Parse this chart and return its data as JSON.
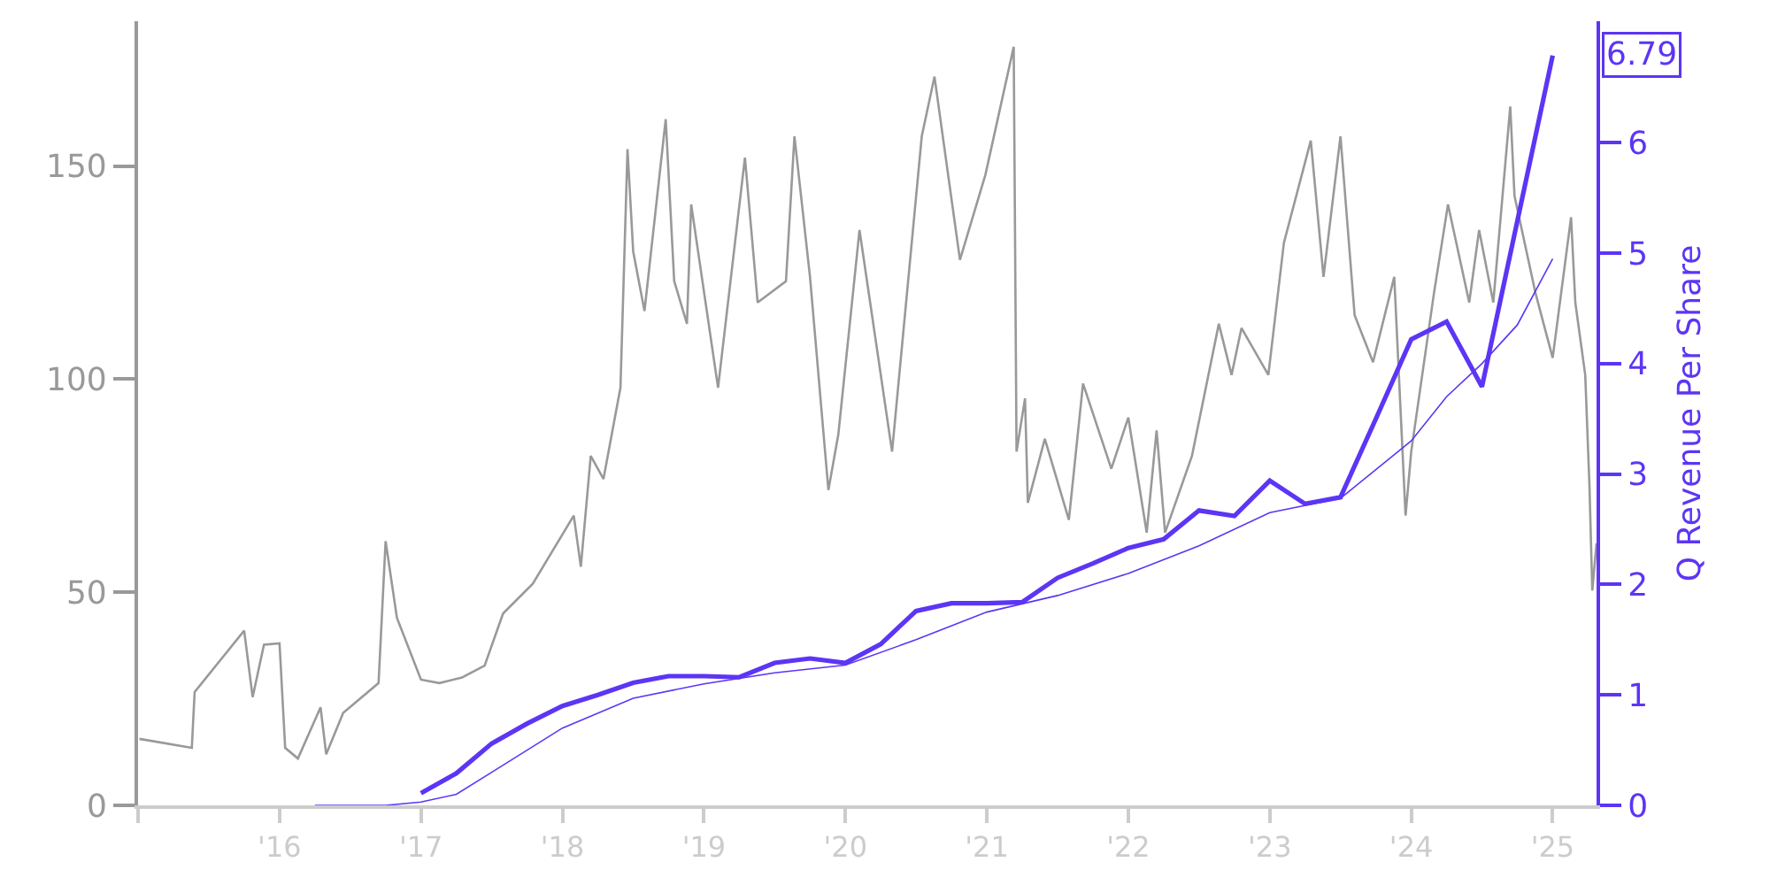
{
  "chart_data": {
    "type": "line",
    "y2label": "Q Revenue Per Share",
    "xlim": [
      2015.0,
      2025.31
    ],
    "xticks": [
      {
        "value": 2015,
        "label": null
      },
      {
        "value": 2016,
        "label": "'16"
      },
      {
        "value": 2017,
        "label": "'17"
      },
      {
        "value": 2018,
        "label": "'18"
      },
      {
        "value": 2019,
        "label": "'19"
      },
      {
        "value": 2020,
        "label": "'20"
      },
      {
        "value": 2021,
        "label": "'21"
      },
      {
        "value": 2022,
        "label": "'22"
      },
      {
        "value": 2023,
        "label": "'23"
      },
      {
        "value": 2024,
        "label": "'24"
      },
      {
        "value": 2025,
        "label": "'25"
      }
    ],
    "ylim": [
      0,
      184
    ],
    "yticks": [
      0,
      50,
      100,
      150
    ],
    "y2lim": [
      0,
      7.1
    ],
    "y2ticks": [
      0,
      1,
      2,
      3,
      4,
      5,
      6
    ],
    "marker": "none",
    "series": [
      {
        "color": "#999999",
        "x": [
          2015.01,
          2015.38,
          2015.4,
          2015.75,
          2015.81,
          2015.89,
          2016.0,
          2016.04,
          2016.13,
          2016.29,
          2016.33,
          2016.45,
          2016.7,
          2016.75,
          2016.83,
          2017.0,
          2017.13,
          2017.29,
          2017.45,
          2017.58,
          2017.79,
          2018.08,
          2018.13,
          2018.2,
          2018.29,
          2018.41,
          2018.46,
          2018.5,
          2018.58,
          2018.73,
          2018.79,
          2018.88,
          2018.91,
          2019.1,
          2019.29,
          2019.38,
          2019.58,
          2019.64,
          2019.75,
          2019.88,
          2019.95,
          2020.1,
          2020.33,
          2020.54,
          2020.63,
          2020.81,
          2020.99,
          2021.19,
          2021.21,
          2021.27,
          2021.29,
          2021.41,
          2021.58,
          2021.68,
          2021.88,
          2022.0,
          2022.13,
          2022.2,
          2022.26,
          2022.45,
          2022.64,
          2022.73,
          2022.8,
          2022.99,
          2023.1,
          2023.29,
          2023.38,
          2023.5,
          2023.6,
          2023.73,
          2023.88,
          2023.96,
          2024.0,
          2024.16,
          2024.26,
          2024.41,
          2024.48,
          2024.58,
          2024.7,
          2024.73,
          2024.88,
          2025.0,
          2025.13,
          2025.16,
          2025.23,
          2025.26,
          2025.28,
          2025.31
        ],
        "values": [
          15.6,
          13.5,
          26.6,
          41,
          25.4,
          37.7,
          38,
          13.5,
          11,
          23,
          12,
          21.7,
          28.7,
          62,
          44,
          29.5,
          28.7,
          30,
          32.8,
          45,
          52,
          68,
          56,
          82,
          76.6,
          98,
          154,
          130,
          116,
          161,
          123,
          113,
          141,
          98,
          152,
          118,
          123,
          157,
          124,
          74,
          87,
          135,
          83,
          157,
          171,
          128,
          148,
          178,
          83,
          95.5,
          71,
          86,
          67,
          99,
          79,
          91,
          64,
          88,
          64,
          82,
          113,
          101,
          112,
          101,
          132,
          156,
          124,
          157,
          115,
          104,
          124,
          68,
          83,
          120,
          141,
          118,
          135,
          118,
          164,
          143,
          120,
          105,
          138,
          118,
          101,
          75,
          50.4,
          61.5
        ]
      },
      {
        "color": "#5c35f5",
        "axis": "y2",
        "x": [
          2017.0,
          2017.25,
          2017.5,
          2017.75,
          2018.0,
          2018.25,
          2018.5,
          2018.75,
          2019.0,
          2019.25,
          2019.5,
          2019.75,
          2020.0,
          2020.25,
          2020.5,
          2020.75,
          2021.0,
          2021.25,
          2021.5,
          2021.75,
          2022.0,
          2022.25,
          2022.5,
          2022.75,
          2023.0,
          2023.25,
          2023.5,
          2023.75,
          2024.0,
          2024.25,
          2024.5,
          2025.0
        ],
        "values": [
          0.11,
          0.29,
          0.56,
          0.74,
          0.9,
          1.0,
          1.11,
          1.17,
          1.17,
          1.16,
          1.29,
          1.33,
          1.29,
          1.46,
          1.76,
          1.83,
          1.83,
          1.84,
          2.06,
          2.19,
          2.33,
          2.41,
          2.67,
          2.62,
          2.94,
          2.73,
          2.79,
          3.5,
          4.22,
          4.38,
          3.79,
          6.79
        ],
        "value_labels": [
          null,
          null,
          null,
          null,
          null,
          null,
          null,
          null,
          null,
          null,
          null,
          null,
          null,
          null,
          null,
          null,
          null,
          null,
          null,
          null,
          null,
          null,
          null,
          null,
          null,
          null,
          null,
          null,
          null,
          null,
          null,
          "6.79"
        ]
      },
      {
        "color": "#5c35f5",
        "axis": "y2",
        "x": [
          2016.25,
          2016.75,
          2017.0,
          2017.25,
          2017.5,
          2018.0,
          2018.5,
          2019.0,
          2019.5,
          2020.0,
          2020.5,
          2021.0,
          2021.5,
          2022.0,
          2022.5,
          2023.0,
          2023.5,
          2024.0,
          2024.25,
          2024.5,
          2024.75,
          2025.0
        ],
        "values": [
          0,
          0,
          0.03,
          0.1,
          0.3,
          0.7,
          0.97,
          1.1,
          1.2,
          1.27,
          1.5,
          1.75,
          1.9,
          2.1,
          2.35,
          2.65,
          2.78,
          3.3,
          3.7,
          4.0,
          4.35,
          4.95
        ]
      }
    ]
  }
}
